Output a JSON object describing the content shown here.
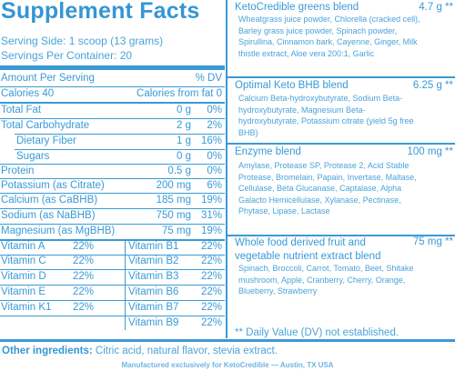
{
  "title": "Supplement Facts",
  "serving_size": "Serving Side: 1 scoop (13 grams)",
  "servings_per_container": "Servings Per Container: 20",
  "header": {
    "amount_label": "Amount Per Serving",
    "dv_label": "% DV"
  },
  "calories": {
    "label": "Calories 40",
    "fat": "Calories from fat 0"
  },
  "nutrients": [
    {
      "label": "Total Fat",
      "amount": "0 g",
      "dv": "0%"
    },
    {
      "label": "Total Carbohydrate",
      "amount": "2 g",
      "dv": "2%"
    },
    {
      "label": "Dietary Fiber",
      "amount": "1 g",
      "dv": "16%"
    },
    {
      "label": "Sugars",
      "amount": "0 g",
      "dv": "0%"
    },
    {
      "label": "Protein",
      "amount": "0.5 g",
      "dv": "0%"
    },
    {
      "label": "Potassium (as Citrate)",
      "amount": "200 mg",
      "dv": "6%"
    },
    {
      "label": "Calcium (as CaBHB)",
      "amount": "185 mg",
      "dv": "19%"
    },
    {
      "label": "Sodium (as NaBHB)",
      "amount": "750 mg",
      "dv": "31%"
    },
    {
      "label": "Magnesium (as MgBHB)",
      "amount": "75 mg",
      "dv": "19%"
    }
  ],
  "vitamins_left": [
    {
      "name": "Vitamin A",
      "dv": "22%"
    },
    {
      "name": "Vitamin C",
      "dv": "22%"
    },
    {
      "name": "Vitamin D",
      "dv": "22%"
    },
    {
      "name": "Vitamin E",
      "dv": "22%"
    },
    {
      "name": "Vitamin K1",
      "dv": "22%"
    }
  ],
  "vitamins_right": [
    {
      "name": "Vitamin B1",
      "dv": "22%"
    },
    {
      "name": "Vitamin B2",
      "dv": "22%"
    },
    {
      "name": "Vitamin B3",
      "dv": "22%"
    },
    {
      "name": "Vitamin B6",
      "dv": "22%"
    },
    {
      "name": "Vitamin B7",
      "dv": "22%"
    },
    {
      "name": "Vitamin B9",
      "dv": "22%"
    }
  ],
  "blends": [
    {
      "title": "KetoCredible greens blend",
      "amount": "4.7 g **",
      "desc": "Wheatgrass juice powder, Chlorella (cracked cell), Barley grass juice powder, Spinach powder, Spirullina, Cinnamon bark, Cayenne, Ginger, Milk thistle extract, Aloe vera 200:1, Garlic"
    },
    {
      "title": "Optimal Keto BHB blend",
      "amount": "6.25 g **",
      "desc": "Calcium Beta-hydroxybutyrate, Sodium Beta-hydroxybutyrate, Magnesium Beta-hydroxybutyrate, Potassium citrate (yield 5g free BHB)"
    },
    {
      "title": "Enzyme blend",
      "amount": "100 mg **",
      "desc": "Amylase, Protease SP, Protease 2, Acid Stable Protease, Bromelain, Papain, Invertase, Maltase, Cellulase, Beta Glucanase, Captalase, Alpha Galacto Hemicellulase, Xylanase, Pectinase, Phytase, Lipase, Lactase"
    },
    {
      "title": "Whole food derived fruit and vegetable nutrient extract blend",
      "amount": "75 mg **",
      "desc": "Spinach, Broccoli, Carrot, Tomato, Beet, Shitake mushroom, Apple, Cranberry, Cherry, Orange, Blueberry, Strawberry"
    }
  ],
  "footnote": "** Daily Value (DV) not established.",
  "other_ingredients": {
    "label": "Other ingredients:",
    "text": " Citric acid, natural flavor, stevia extract."
  },
  "manufacturer": "Manufactured exclusively for KetoCredible — Austin, TX USA",
  "colors": {
    "accent": "#3a9ad6"
  }
}
